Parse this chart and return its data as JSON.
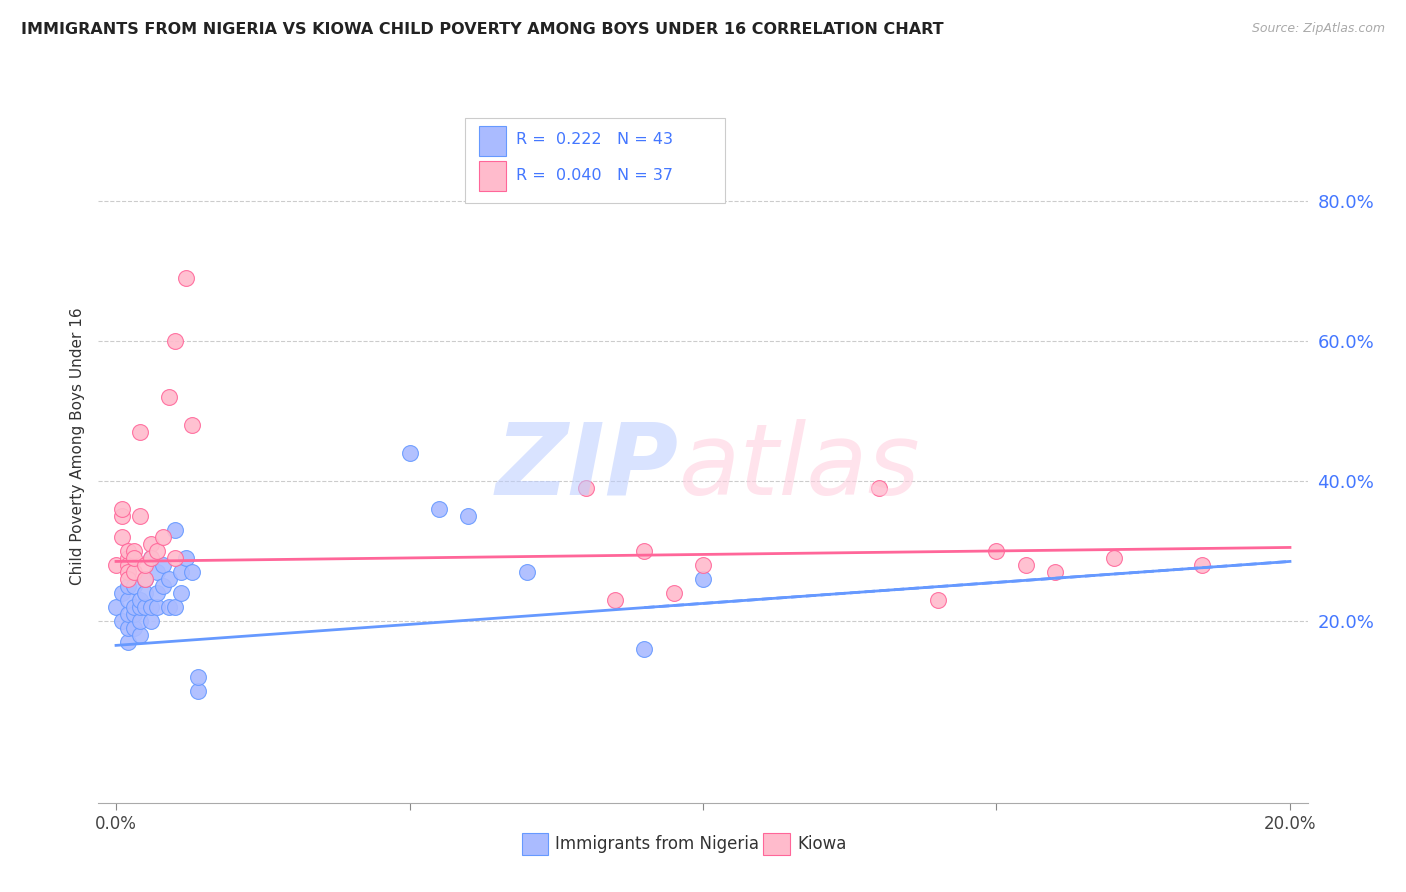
{
  "title": "IMMIGRANTS FROM NIGERIA VS KIOWA CHILD POVERTY AMONG BOYS UNDER 16 CORRELATION CHART",
  "source": "Source: ZipAtlas.com",
  "ylabel": "Child Poverty Among Boys Under 16",
  "right_yticks": [
    "80.0%",
    "60.0%",
    "40.0%",
    "20.0%"
  ],
  "right_ytick_vals": [
    0.8,
    0.6,
    0.4,
    0.2
  ],
  "legend_label1": "Immigrants from Nigeria",
  "legend_label2": "Kiowa",
  "R1": 0.222,
  "N1": 43,
  "R2": 0.04,
  "N2": 37,
  "blue_color": "#6699ff",
  "pink_color": "#ff6699",
  "blue_light": "#aabbff",
  "pink_light": "#ffbbcc",
  "bg_color": "#ffffff",
  "grid_color": "#cccccc",
  "title_color": "#222222",
  "right_axis_color": "#4477ff",
  "nigeria_x": [
    0.0,
    0.001,
    0.001,
    0.002,
    0.002,
    0.002,
    0.002,
    0.002,
    0.003,
    0.003,
    0.003,
    0.003,
    0.004,
    0.004,
    0.004,
    0.004,
    0.005,
    0.005,
    0.005,
    0.006,
    0.006,
    0.006,
    0.007,
    0.007,
    0.007,
    0.008,
    0.008,
    0.009,
    0.009,
    0.01,
    0.01,
    0.011,
    0.011,
    0.012,
    0.013,
    0.014,
    0.014,
    0.05,
    0.055,
    0.06,
    0.07,
    0.09,
    0.1
  ],
  "nigeria_y": [
    0.22,
    0.2,
    0.24,
    0.17,
    0.19,
    0.21,
    0.23,
    0.25,
    0.19,
    0.21,
    0.22,
    0.25,
    0.18,
    0.2,
    0.22,
    0.23,
    0.22,
    0.24,
    0.26,
    0.2,
    0.22,
    0.29,
    0.22,
    0.24,
    0.27,
    0.25,
    0.28,
    0.22,
    0.26,
    0.22,
    0.33,
    0.24,
    0.27,
    0.29,
    0.27,
    0.1,
    0.12,
    0.44,
    0.36,
    0.35,
    0.27,
    0.16,
    0.26
  ],
  "kiowa_x": [
    0.0,
    0.001,
    0.001,
    0.001,
    0.002,
    0.002,
    0.002,
    0.002,
    0.002,
    0.003,
    0.003,
    0.003,
    0.004,
    0.004,
    0.005,
    0.005,
    0.006,
    0.006,
    0.007,
    0.008,
    0.009,
    0.01,
    0.01,
    0.012,
    0.013,
    0.08,
    0.085,
    0.09,
    0.095,
    0.1,
    0.13,
    0.14,
    0.15,
    0.155,
    0.16,
    0.17,
    0.185
  ],
  "kiowa_y": [
    0.28,
    0.35,
    0.36,
    0.32,
    0.29,
    0.28,
    0.27,
    0.26,
    0.3,
    0.27,
    0.3,
    0.29,
    0.47,
    0.35,
    0.26,
    0.28,
    0.31,
    0.29,
    0.3,
    0.32,
    0.52,
    0.29,
    0.6,
    0.69,
    0.48,
    0.39,
    0.23,
    0.3,
    0.24,
    0.28,
    0.39,
    0.23,
    0.3,
    0.28,
    0.27,
    0.29,
    0.28
  ],
  "xlim_min": -0.003,
  "xlim_max": 0.203,
  "ylim_min": -0.06,
  "ylim_max": 0.96,
  "blue_trend_x0": 0.0,
  "blue_trend_y0": 0.165,
  "blue_trend_x1": 0.2,
  "blue_trend_y1": 0.285,
  "pink_trend_x0": 0.0,
  "pink_trend_y0": 0.285,
  "pink_trend_x1": 0.2,
  "pink_trend_y1": 0.305
}
